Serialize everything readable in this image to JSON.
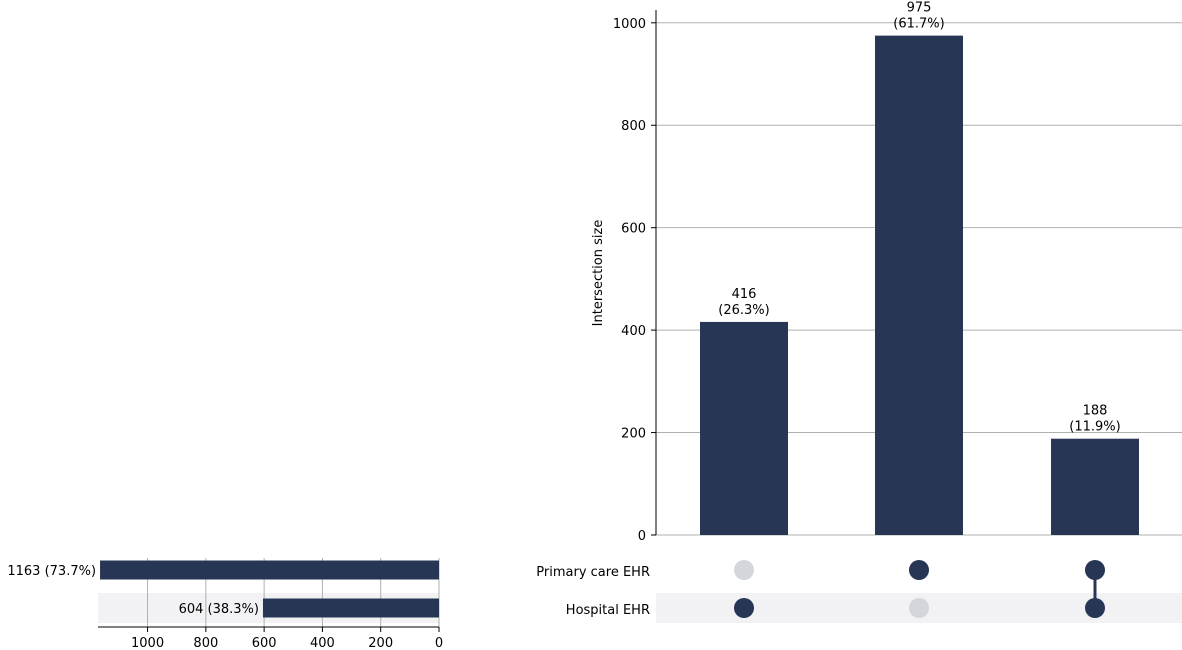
{
  "chart_data": {
    "type": "upset",
    "sets": [
      {
        "name": "Primary care EHR",
        "size": 1163,
        "size_label": "1163 (73.7%)"
      },
      {
        "name": "Hospital EHR",
        "size": 604,
        "size_label": "604 (38.3%)"
      }
    ],
    "intersections": [
      {
        "members": [
          false,
          true
        ],
        "value": 416,
        "count_label": "416",
        "pct_label": "(26.3%)"
      },
      {
        "members": [
          true,
          false
        ],
        "value": 975,
        "count_label": "975",
        "pct_label": "(61.7%)"
      },
      {
        "members": [
          true,
          true
        ],
        "value": 188,
        "count_label": "188",
        "pct_label": "(11.9%)"
      }
    ],
    "ylabel": "Intersection size",
    "ylim": [
      0,
      1025
    ],
    "yticks": [
      0,
      200,
      400,
      600,
      800,
      1000
    ],
    "set_size_xlim": [
      0,
      1170
    ],
    "set_size_ticks": [
      0,
      200,
      400,
      600,
      800,
      1000
    ],
    "grid": true
  },
  "colors": {
    "bar": "#273654",
    "dot_inactive": "#d3d6da",
    "grid": "#b0b0b0",
    "row_shade": "#f2f2f4",
    "axis": "#000000",
    "background": "#ffffff"
  }
}
